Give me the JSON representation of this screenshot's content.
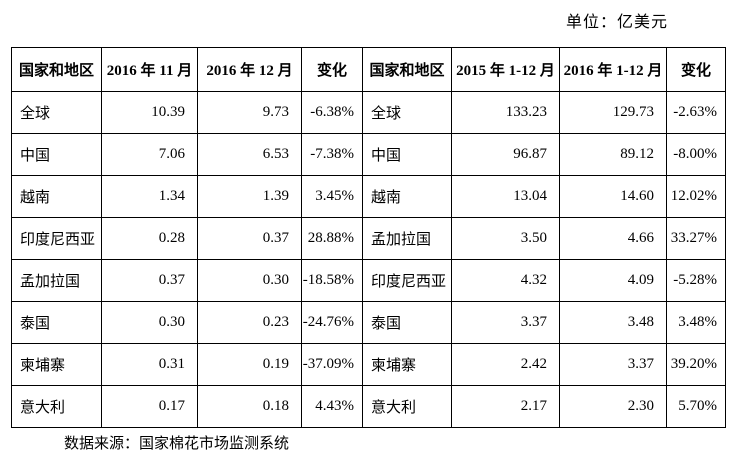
{
  "unit_label": "单位：亿美元",
  "source_label": "数据来源：国家棉花市场监测系统",
  "table": {
    "headers": [
      "国家和地区",
      "2016 年 11 月",
      "2016 年 12 月",
      "变化",
      "国家和地区",
      "2015 年 1-12 月",
      "2016 年 1-12 月",
      "变化"
    ],
    "rows": [
      [
        "全球",
        "10.39",
        "9.73",
        "-6.38%",
        "全球",
        "133.23",
        "129.73",
        "-2.63%"
      ],
      [
        "中国",
        "7.06",
        "6.53",
        "-7.38%",
        "中国",
        "96.87",
        "89.12",
        "-8.00%"
      ],
      [
        "越南",
        "1.34",
        "1.39",
        "3.45%",
        "越南",
        "13.04",
        "14.60",
        "12.02%"
      ],
      [
        "印度尼西亚",
        "0.28",
        "0.37",
        "28.88%",
        "孟加拉国",
        "3.50",
        "4.66",
        "33.27%"
      ],
      [
        "孟加拉国",
        "0.37",
        "0.30",
        "-18.58%",
        "印度尼西亚",
        "4.32",
        "4.09",
        "-5.28%"
      ],
      [
        "泰国",
        "0.30",
        "0.23",
        "-24.76%",
        "泰国",
        "3.37",
        "3.48",
        "3.48%"
      ],
      [
        "柬埔寨",
        "0.31",
        "0.19",
        "-37.09%",
        "柬埔寨",
        "2.42",
        "3.37",
        "39.20%"
      ],
      [
        "意大利",
        "0.17",
        "0.18",
        "4.43%",
        "意大利",
        "2.17",
        "2.30",
        "5.70%"
      ]
    ]
  },
  "chart_data": {
    "type": "table",
    "title": "",
    "unit": "亿美元",
    "columns": [
      "国家和地区",
      "2016年11月",
      "2016年12月",
      "变化",
      "国家和地区",
      "2015年1-12月",
      "2016年1-12月",
      "变化"
    ],
    "monthly": {
      "categories": [
        "全球",
        "中国",
        "越南",
        "印度尼西亚",
        "孟加拉国",
        "泰国",
        "柬埔寨",
        "意大利"
      ],
      "series": [
        {
          "name": "2016年11月",
          "values": [
            10.39,
            7.06,
            1.34,
            0.28,
            0.37,
            0.3,
            0.31,
            0.17
          ]
        },
        {
          "name": "2016年12月",
          "values": [
            9.73,
            6.53,
            1.39,
            0.37,
            0.3,
            0.23,
            0.19,
            0.18
          ]
        },
        {
          "name": "变化",
          "values": [
            "-6.38%",
            "-7.38%",
            "3.45%",
            "28.88%",
            "-18.58%",
            "-24.76%",
            "-37.09%",
            "4.43%"
          ]
        }
      ]
    },
    "yearly": {
      "categories": [
        "全球",
        "中国",
        "越南",
        "孟加拉国",
        "印度尼西亚",
        "泰国",
        "柬埔寨",
        "意大利"
      ],
      "series": [
        {
          "name": "2015年1-12月",
          "values": [
            133.23,
            96.87,
            13.04,
            3.5,
            4.32,
            3.37,
            2.42,
            2.17
          ]
        },
        {
          "name": "2016年1-12月",
          "values": [
            129.73,
            89.12,
            14.6,
            4.66,
            4.09,
            3.48,
            3.37,
            2.3
          ]
        },
        {
          "name": "变化",
          "values": [
            "-2.63%",
            "-8.00%",
            "12.02%",
            "33.27%",
            "-5.28%",
            "3.48%",
            "39.20%",
            "5.70%"
          ]
        }
      ]
    }
  }
}
